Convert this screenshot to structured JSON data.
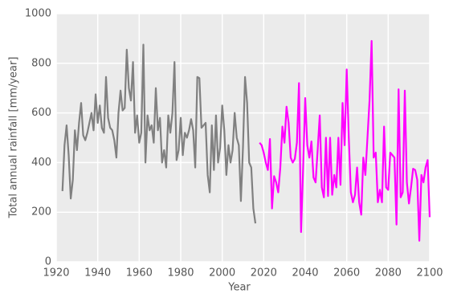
{
  "chart_data": {
    "type": "line",
    "xlabel": "Year",
    "ylabel": "Total annual rainfall [mm/year]",
    "xlim": [
      1920,
      2100
    ],
    "xticks": [
      1920,
      1940,
      1960,
      1980,
      2000,
      2020,
      2040,
      2060,
      2080,
      2100
    ],
    "ylim": [
      0,
      1000
    ],
    "yticks": [
      0,
      200,
      400,
      600,
      800,
      1000
    ],
    "grid": true,
    "series": [
      {
        "color": "#808080",
        "x": [
          1923,
          1924,
          1925,
          1926,
          1927,
          1928,
          1929,
          1930,
          1931,
          1932,
          1933,
          1934,
          1935,
          1936,
          1937,
          1938,
          1939,
          1940,
          1941,
          1942,
          1943,
          1944,
          1945,
          1946,
          1947,
          1948,
          1949,
          1950,
          1951,
          1952,
          1953,
          1954,
          1955,
          1956,
          1957,
          1958,
          1959,
          1960,
          1961,
          1962,
          1963,
          1964,
          1965,
          1966,
          1967,
          1968,
          1969,
          1970,
          1971,
          1972,
          1973,
          1974,
          1975,
          1976,
          1977,
          1978,
          1979,
          1980,
          1981,
          1982,
          1983,
          1984,
          1985,
          1986,
          1987,
          1988,
          1989,
          1990,
          1991,
          1992,
          1993,
          1994,
          1995,
          1996,
          1997,
          1998,
          1999,
          2000,
          2001,
          2002,
          2003,
          2004,
          2005,
          2006,
          2007,
          2008,
          2009,
          2010,
          2011,
          2012,
          2013,
          2014,
          2015,
          2016
        ],
        "values": [
          285,
          470,
          550,
          430,
          255,
          330,
          530,
          450,
          560,
          640,
          510,
          490,
          520,
          560,
          600,
          530,
          675,
          560,
          630,
          540,
          520,
          745,
          580,
          540,
          530,
          490,
          420,
          600,
          690,
          610,
          620,
          855,
          700,
          650,
          805,
          520,
          590,
          480,
          520,
          875,
          400,
          590,
          530,
          550,
          480,
          700,
          530,
          580,
          400,
          450,
          380,
          590,
          520,
          600,
          805,
          410,
          450,
          580,
          430,
          520,
          500,
          530,
          575,
          530,
          380,
          745,
          740,
          540,
          550,
          560,
          350,
          280,
          550,
          370,
          590,
          400,
          460,
          630,
          530,
          350,
          470,
          400,
          450,
          600,
          500,
          470,
          245,
          460,
          745,
          640,
          400,
          380,
          215,
          155
        ]
      },
      {
        "color": "#ff00ff",
        "x": [
          2018,
          2019,
          2020,
          2021,
          2022,
          2023,
          2024,
          2025,
          2026,
          2027,
          2028,
          2029,
          2030,
          2031,
          2032,
          2033,
          2034,
          2035,
          2036,
          2037,
          2038,
          2039,
          2040,
          2041,
          2042,
          2043,
          2044,
          2045,
          2046,
          2047,
          2048,
          2049,
          2050,
          2051,
          2052,
          2053,
          2054,
          2055,
          2056,
          2057,
          2058,
          2059,
          2060,
          2061,
          2062,
          2063,
          2064,
          2065,
          2066,
          2067,
          2068,
          2069,
          2070,
          2071,
          2072,
          2073,
          2074,
          2075,
          2076,
          2077,
          2078,
          2079,
          2080,
          2081,
          2082,
          2083,
          2084,
          2085,
          2086,
          2087,
          2088,
          2089,
          2090,
          2091,
          2092,
          2093,
          2094,
          2095,
          2096,
          2097,
          2098,
          2099,
          2100
        ],
        "values": [
          480,
          470,
          440,
          400,
          370,
          495,
          215,
          345,
          320,
          280,
          380,
          545,
          480,
          625,
          560,
          420,
          400,
          415,
          480,
          720,
          120,
          380,
          660,
          470,
          420,
          485,
          340,
          320,
          450,
          590,
          300,
          260,
          500,
          265,
          500,
          270,
          350,
          300,
          500,
          310,
          640,
          470,
          775,
          500,
          280,
          240,
          270,
          380,
          240,
          190,
          420,
          350,
          500,
          650,
          890,
          420,
          440,
          240,
          290,
          240,
          545,
          300,
          290,
          440,
          430,
          420,
          150,
          695,
          260,
          280,
          690,
          320,
          235,
          300,
          375,
          370,
          330,
          85,
          350,
          320,
          380,
          410,
          180
        ]
      }
    ]
  }
}
